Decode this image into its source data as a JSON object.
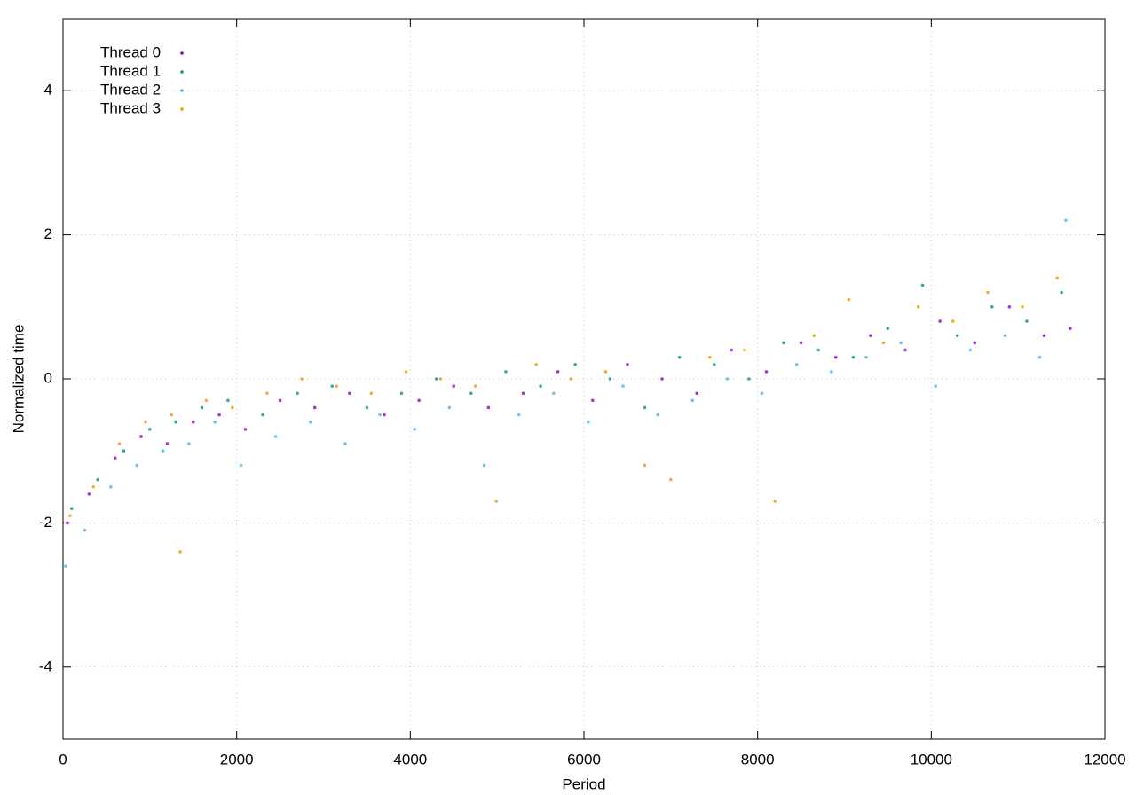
{
  "chart_data": {
    "type": "scatter",
    "x_label": "Period",
    "y_label": "Normalized time",
    "xlim": [
      0,
      12000
    ],
    "ylim": [
      -5,
      5
    ],
    "xticks": [
      0,
      2000,
      4000,
      6000,
      8000,
      10000,
      12000
    ],
    "yticks": [
      -4,
      -2,
      0,
      2,
      4
    ],
    "grid": true,
    "legend": "top-left",
    "series": [
      {
        "name": "Thread 0",
        "color": "#9400d3",
        "x": [
          50,
          300,
          600,
          900,
          1200,
          1500,
          1800,
          2100,
          2500,
          2900,
          3300,
          3700,
          4100,
          4500,
          4900,
          5300,
          5700,
          6100,
          6500,
          6900,
          7300,
          7700,
          8100,
          8500,
          8900,
          9300,
          9700,
          10100,
          10500,
          10900,
          11300,
          11600
        ],
        "values": [
          -2.0,
          -1.6,
          -1.1,
          -0.8,
          -0.9,
          -0.6,
          -0.5,
          -0.7,
          -0.3,
          -0.4,
          -0.2,
          -0.5,
          -0.3,
          -0.1,
          -0.4,
          -0.2,
          0.1,
          -0.3,
          0.2,
          0.0,
          -0.2,
          0.4,
          0.1,
          0.5,
          0.3,
          0.6,
          0.4,
          0.8,
          0.5,
          1.0,
          0.6,
          0.7
        ]
      },
      {
        "name": "Thread 1",
        "color": "#009e73",
        "x": [
          100,
          400,
          700,
          1000,
          1300,
          1600,
          1900,
          2300,
          2700,
          3100,
          3500,
          3900,
          4300,
          4700,
          5100,
          5500,
          5900,
          6300,
          6700,
          7100,
          7500,
          7900,
          8300,
          8700,
          9100,
          9500,
          9900,
          10300,
          10700,
          11100,
          11500
        ],
        "values": [
          -1.8,
          -1.4,
          -1.0,
          -0.7,
          -0.6,
          -0.4,
          -0.3,
          -0.5,
          -0.2,
          -0.1,
          -0.4,
          -0.2,
          0.0,
          -0.2,
          0.1,
          -0.1,
          0.2,
          0.0,
          -0.4,
          0.3,
          0.2,
          0.0,
          0.5,
          0.4,
          0.3,
          0.7,
          1.3,
          0.6,
          1.0,
          0.8,
          1.2
        ]
      },
      {
        "name": "Thread 2",
        "color": "#56b4e9",
        "x": [
          30,
          250,
          550,
          850,
          1150,
          1450,
          1750,
          2050,
          2450,
          2850,
          3250,
          3650,
          4050,
          4450,
          4850,
          5250,
          5650,
          6050,
          6450,
          6850,
          7250,
          7650,
          8050,
          8450,
          8850,
          9250,
          9650,
          10050,
          10450,
          10850,
          11250,
          11550
        ],
        "values": [
          -2.6,
          -2.1,
          -1.5,
          -1.2,
          -1.0,
          -0.9,
          -0.6,
          -1.2,
          -0.8,
          -0.6,
          -0.9,
          -0.5,
          -0.7,
          -0.4,
          -1.2,
          -0.5,
          -0.2,
          -0.6,
          -0.1,
          -0.5,
          -0.3,
          0.0,
          -0.2,
          0.2,
          0.1,
          0.3,
          0.5,
          -0.1,
          0.4,
          0.6,
          0.3,
          2.2
        ]
      },
      {
        "name": "Thread 3",
        "color": "#e69f00",
        "x": [
          80,
          350,
          650,
          950,
          1250,
          1350,
          1650,
          1950,
          2350,
          2750,
          3150,
          3550,
          3950,
          4350,
          4750,
          4990,
          5450,
          5850,
          6250,
          6700,
          7000,
          7450,
          7850,
          8200,
          8650,
          9050,
          9450,
          9850,
          10250,
          10650,
          11050,
          11450
        ],
        "values": [
          -1.9,
          -1.5,
          -0.9,
          -0.6,
          -0.5,
          -2.4,
          -0.3,
          -0.4,
          -0.2,
          0.0,
          -0.1,
          -0.2,
          0.1,
          0.0,
          -0.1,
          -1.7,
          0.2,
          0.0,
          0.1,
          -1.2,
          -1.4,
          0.3,
          0.4,
          -1.7,
          0.6,
          1.1,
          0.5,
          1.0,
          0.8,
          1.2,
          1.0,
          1.4
        ]
      }
    ]
  }
}
